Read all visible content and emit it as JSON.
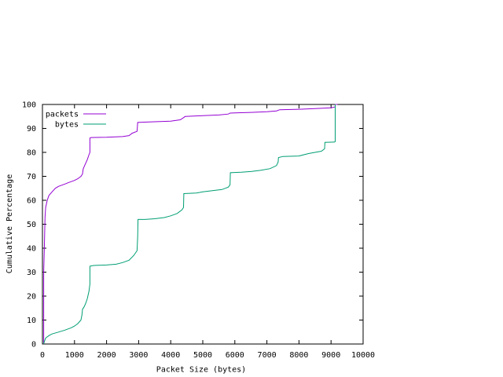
{
  "chart_data": {
    "type": "line",
    "title": "",
    "xlabel": "Packet Size (bytes)",
    "ylabel": "Cumulative Percentage",
    "xlim": [
      0,
      10000
    ],
    "ylim": [
      0,
      100
    ],
    "xticks": [
      0,
      1000,
      2000,
      3000,
      4000,
      5000,
      6000,
      7000,
      8000,
      9000,
      10000
    ],
    "yticks": [
      0,
      10,
      20,
      30,
      40,
      50,
      60,
      70,
      80,
      90,
      100
    ],
    "xtick_labels": [
      "0",
      "1000",
      "2000",
      "3000",
      "4000",
      "5000",
      "6000",
      "7000",
      "8000",
      "9000",
      "10000"
    ],
    "ytick_labels": [
      "0",
      "10",
      "20",
      "30",
      "40",
      "50",
      "60",
      "70",
      "80",
      "90",
      "100"
    ],
    "grid": false,
    "legend_position": "top-left",
    "series": [
      {
        "name": "packets",
        "color": "#9400d3",
        "points": [
          [
            40,
            0
          ],
          [
            40,
            30
          ],
          [
            60,
            40
          ],
          [
            80,
            53
          ],
          [
            100,
            57
          ],
          [
            150,
            60
          ],
          [
            200,
            62
          ],
          [
            300,
            63.5
          ],
          [
            400,
            65
          ],
          [
            500,
            65.8
          ],
          [
            600,
            66.3
          ],
          [
            700,
            66.8
          ],
          [
            800,
            67.3
          ],
          [
            900,
            67.8
          ],
          [
            1000,
            68.3
          ],
          [
            1100,
            69
          ],
          [
            1200,
            70
          ],
          [
            1250,
            71
          ],
          [
            1270,
            73
          ],
          [
            1300,
            74
          ],
          [
            1400,
            77
          ],
          [
            1450,
            79
          ],
          [
            1480,
            80
          ],
          [
            1480,
            86
          ],
          [
            1520,
            86.2
          ],
          [
            2000,
            86.3
          ],
          [
            2500,
            86.6
          ],
          [
            2700,
            87
          ],
          [
            2800,
            88
          ],
          [
            2950,
            88.8
          ],
          [
            2970,
            92.5
          ],
          [
            3500,
            92.8
          ],
          [
            4000,
            93
          ],
          [
            4300,
            93.6
          ],
          [
            4400,
            94.5
          ],
          [
            4450,
            95
          ],
          [
            5000,
            95.3
          ],
          [
            5500,
            95.6
          ],
          [
            5800,
            96
          ],
          [
            5850,
            96.4
          ],
          [
            6000,
            96.5
          ],
          [
            6500,
            96.7
          ],
          [
            7000,
            97
          ],
          [
            7300,
            97.3
          ],
          [
            7400,
            97.8
          ],
          [
            8000,
            98
          ],
          [
            8500,
            98.3
          ],
          [
            9000,
            98.6
          ],
          [
            9130,
            99
          ],
          [
            9130,
            100
          ],
          [
            9200,
            100
          ]
        ]
      },
      {
        "name": "bytes",
        "color": "#009e73",
        "points": [
          [
            40,
            0
          ],
          [
            60,
            1
          ],
          [
            100,
            2.5
          ],
          [
            200,
            3.5
          ],
          [
            300,
            4.2
          ],
          [
            500,
            5
          ],
          [
            700,
            5.8
          ],
          [
            900,
            6.8
          ],
          [
            1000,
            7.5
          ],
          [
            1100,
            8.5
          ],
          [
            1200,
            10
          ],
          [
            1230,
            12
          ],
          [
            1250,
            14.5
          ],
          [
            1300,
            15.5
          ],
          [
            1350,
            17
          ],
          [
            1400,
            19
          ],
          [
            1450,
            22
          ],
          [
            1480,
            25
          ],
          [
            1480,
            32.5
          ],
          [
            1600,
            32.8
          ],
          [
            2000,
            33
          ],
          [
            2300,
            33.3
          ],
          [
            2500,
            34
          ],
          [
            2700,
            35
          ],
          [
            2850,
            37
          ],
          [
            2950,
            39
          ],
          [
            2970,
            45
          ],
          [
            2980,
            52
          ],
          [
            3200,
            52
          ],
          [
            3500,
            52.3
          ],
          [
            3800,
            52.8
          ],
          [
            4000,
            53.5
          ],
          [
            4200,
            54.5
          ],
          [
            4350,
            56
          ],
          [
            4400,
            57
          ],
          [
            4410,
            62.8
          ],
          [
            4800,
            63
          ],
          [
            5000,
            63.5
          ],
          [
            5300,
            64
          ],
          [
            5600,
            64.5
          ],
          [
            5800,
            65.5
          ],
          [
            5850,
            66.5
          ],
          [
            5860,
            71.5
          ],
          [
            6200,
            71.7
          ],
          [
            6500,
            72
          ],
          [
            6800,
            72.5
          ],
          [
            7100,
            73.2
          ],
          [
            7300,
            74.5
          ],
          [
            7350,
            76
          ],
          [
            7360,
            77.8
          ],
          [
            7500,
            78.3
          ],
          [
            8000,
            78.5
          ],
          [
            8300,
            79.5
          ],
          [
            8500,
            80
          ],
          [
            8700,
            80.5
          ],
          [
            8800,
            81.5
          ],
          [
            8810,
            84.2
          ],
          [
            9100,
            84.3
          ],
          [
            9130,
            84.5
          ],
          [
            9130,
            100
          ]
        ]
      }
    ]
  }
}
